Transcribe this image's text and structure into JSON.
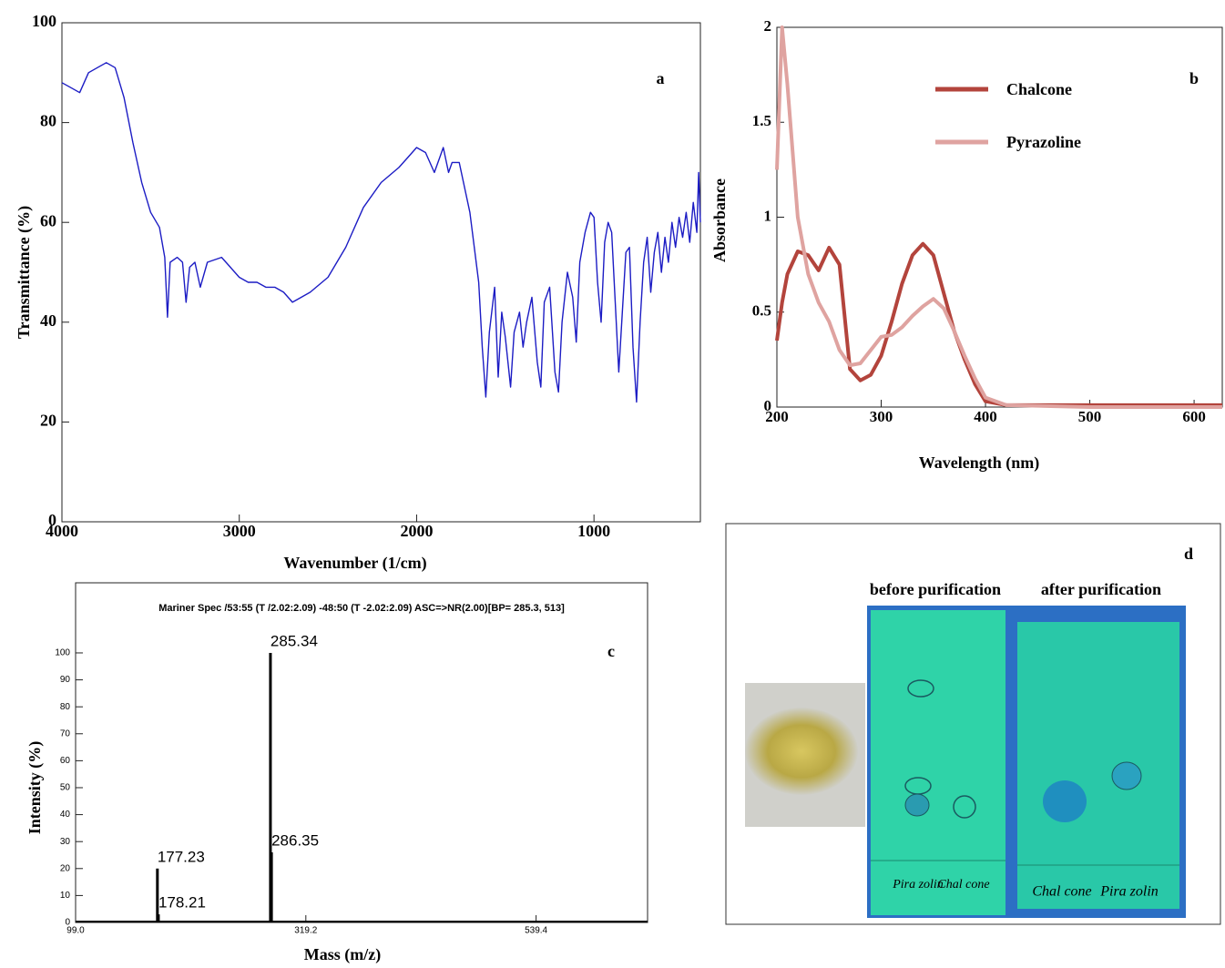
{
  "chart_data": [
    {
      "type": "line",
      "label": "a",
      "xlabel": "Wavenumber (1/cm)",
      "ylabel": "Transmittance (%)",
      "xlim": [
        4000,
        400
      ],
      "ylim": [
        0,
        100
      ],
      "xticks": [
        4000,
        3000,
        2000,
        1000
      ],
      "yticks": [
        0,
        20,
        40,
        60,
        80,
        100
      ],
      "x": [
        4000,
        3950,
        3900,
        3850,
        3800,
        3750,
        3700,
        3650,
        3600,
        3550,
        3500,
        3450,
        3420,
        3405,
        3390,
        3350,
        3320,
        3300,
        3280,
        3250,
        3220,
        3180,
        3100,
        3050,
        3000,
        2950,
        2900,
        2850,
        2800,
        2750,
        2700,
        2650,
        2600,
        2500,
        2400,
        2300,
        2200,
        2100,
        2050,
        2000,
        1950,
        1900,
        1870,
        1850,
        1820,
        1800,
        1760,
        1700,
        1650,
        1630,
        1610,
        1590,
        1560,
        1540,
        1520,
        1500,
        1470,
        1450,
        1420,
        1400,
        1380,
        1350,
        1320,
        1300,
        1280,
        1250,
        1220,
        1200,
        1180,
        1150,
        1120,
        1100,
        1080,
        1050,
        1020,
        1000,
        980,
        960,
        940,
        920,
        900,
        880,
        860,
        840,
        820,
        800,
        780,
        760,
        740,
        720,
        700,
        680,
        660,
        640,
        620,
        600,
        580,
        560,
        540,
        520,
        500,
        480,
        460,
        440,
        420,
        410,
        400
      ],
      "series": [
        {
          "color": "#1c1cc4",
          "values": [
            88,
            87,
            86,
            90,
            91,
            92,
            91,
            85,
            76,
            68,
            62,
            59,
            53,
            41,
            52,
            53,
            52,
            44,
            51,
            52,
            47,
            52,
            53,
            51,
            49,
            48,
            48,
            47,
            47,
            46,
            44,
            45,
            46,
            49,
            55,
            63,
            68,
            71,
            73,
            75,
            74,
            70,
            73,
            75,
            70,
            72,
            72,
            62,
            48,
            35,
            25,
            38,
            47,
            29,
            42,
            37,
            27,
            38,
            42,
            35,
            40,
            45,
            32,
            27,
            44,
            47,
            30,
            26,
            40,
            50,
            45,
            36,
            52,
            58,
            62,
            61,
            48,
            40,
            56,
            60,
            58,
            44,
            30,
            42,
            54,
            55,
            35,
            24,
            40,
            52,
            57,
            46,
            54,
            58,
            50,
            57,
            52,
            60,
            55,
            61,
            57,
            62,
            56,
            64,
            58,
            70,
            60
          ]
        }
      ]
    },
    {
      "type": "line",
      "label": "b",
      "xlabel": "Wavelength (nm)",
      "ylabel": "Absorbance",
      "xlim": [
        200,
        627
      ],
      "ylim": [
        0,
        2
      ],
      "xticks": [
        200,
        300,
        400,
        500,
        600
      ],
      "yticks": [
        0,
        0.5,
        1,
        1.5,
        2
      ],
      "legend": "upper center",
      "x": [
        200,
        205,
        210,
        220,
        230,
        240,
        250,
        260,
        270,
        280,
        290,
        300,
        310,
        320,
        330,
        340,
        350,
        360,
        370,
        380,
        390,
        400,
        420,
        500,
        627
      ],
      "series": [
        {
          "name": "Chalcone",
          "color": "#b3443c",
          "values": [
            0.35,
            0.55,
            0.7,
            0.82,
            0.8,
            0.72,
            0.84,
            0.75,
            0.2,
            0.14,
            0.17,
            0.27,
            0.45,
            0.65,
            0.8,
            0.86,
            0.8,
            0.6,
            0.4,
            0.25,
            0.12,
            0.03,
            0.01,
            0.01,
            0.01
          ]
        },
        {
          "name": "Pyrazoline",
          "color": "#dfa3a0",
          "values": [
            1.25,
            2,
            1.7,
            1.0,
            0.7,
            0.55,
            0.45,
            0.3,
            0.22,
            0.23,
            0.3,
            0.37,
            0.38,
            0.42,
            0.48,
            0.53,
            0.57,
            0.52,
            0.4,
            0.27,
            0.15,
            0.05,
            0.01,
            0,
            0
          ]
        }
      ]
    },
    {
      "type": "stem",
      "label": "c",
      "header": "Mariner Spec /53:55 (T /2.02:2.09) -48:50 (T -2.02:2.09)  ASC=>NR(2.00)[BP= 285.3, 513]",
      "xlabel": "Mass (m/z)",
      "ylabel": "Intensity (%)",
      "xlim": [
        99,
        646
      ],
      "ylim": [
        0,
        126
      ],
      "xticks": [
        {
          "value": 99,
          "label": "99.0"
        },
        319.2,
        539.4
      ],
      "yticks": [
        0,
        10,
        20,
        30,
        40,
        50,
        60,
        70,
        80,
        90,
        100
      ],
      "x": [
        177.23,
        178.21,
        285.34,
        286.35
      ],
      "values": [
        20,
        3,
        100,
        26
      ],
      "color": "#000000"
    }
  ],
  "photo_panel": {
    "label": "d",
    "captions": [
      "before purification",
      "after purification"
    ],
    "plate_labels": [
      "Pira zolin",
      "Chal cone",
      "Chal cone",
      "Pira zolin"
    ]
  }
}
